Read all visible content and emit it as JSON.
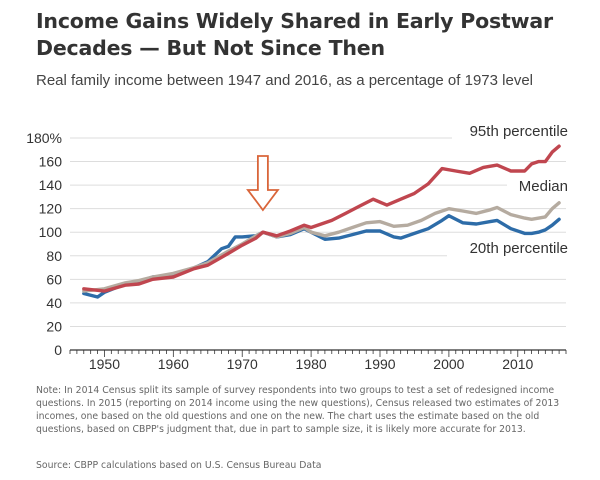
{
  "title": "Income Gains Widely Shared in Early Postwar Decades — But Not Since Then",
  "subtitle": "Real family income between 1947 and 2016, as a percentage of 1973 level",
  "note": "Note: In 2014 Census split its sample of survey respondents into two groups to test a set of redesigned income questions.  In 2015 (reporting on 2014 income using the new questions), Census released two estimates of 2013 incomes, one based on the old questions and one on the new.  The chart uses the estimate based on the old questions, based on CBPP's judgment that, due in part to sample size, it is likely more accurate for 2013.",
  "source": "Source: CBPP calculations based on U.S. Census Bureau Data",
  "colors": {
    "p95": "#c0464f",
    "median": "#b5aba0",
    "p20": "#2d6ca8",
    "arrow": "#d9653a",
    "axis": "#333333",
    "grid": "#dddddd"
  },
  "chart_data": {
    "type": "line",
    "xlim": [
      1945,
      2017
    ],
    "ylim": [
      0,
      180
    ],
    "yticks": [
      0,
      20,
      40,
      60,
      80,
      100,
      120,
      140,
      160,
      180
    ],
    "ytick_labels": [
      "0",
      "20",
      "40",
      "60",
      "80",
      "100",
      "120",
      "140",
      "160",
      "180%"
    ],
    "xticks": [
      1950,
      1960,
      1970,
      1980,
      1990,
      2000,
      2010
    ],
    "xtick_labels": [
      "1950",
      "1960",
      "1970",
      "1980",
      "1990",
      "2000",
      "2010"
    ],
    "annotation": {
      "type": "down-arrow",
      "x": 1973
    },
    "series": [
      {
        "name": "95th percentile",
        "key": "p95",
        "points": [
          [
            1947,
            52
          ],
          [
            1950,
            50
          ],
          [
            1953,
            55
          ],
          [
            1955,
            56
          ],
          [
            1957,
            60
          ],
          [
            1960,
            62
          ],
          [
            1963,
            69
          ],
          [
            1965,
            72
          ],
          [
            1968,
            82
          ],
          [
            1970,
            89
          ],
          [
            1972,
            95
          ],
          [
            1973,
            100
          ],
          [
            1975,
            97
          ],
          [
            1977,
            101
          ],
          [
            1979,
            106
          ],
          [
            1980,
            104
          ],
          [
            1983,
            110
          ],
          [
            1985,
            116
          ],
          [
            1987,
            122
          ],
          [
            1989,
            128
          ],
          [
            1991,
            123
          ],
          [
            1993,
            128
          ],
          [
            1995,
            133
          ],
          [
            1997,
            141
          ],
          [
            1999,
            154
          ],
          [
            2001,
            152
          ],
          [
            2003,
            150
          ],
          [
            2005,
            155
          ],
          [
            2007,
            157
          ],
          [
            2009,
            152
          ],
          [
            2011,
            152
          ],
          [
            2012,
            158
          ],
          [
            2013,
            160
          ],
          [
            2014,
            160
          ],
          [
            2015,
            168
          ],
          [
            2016,
            173
          ]
        ]
      },
      {
        "name": "Median",
        "key": "median",
        "points": [
          [
            1947,
            50
          ],
          [
            1950,
            52
          ],
          [
            1953,
            57
          ],
          [
            1955,
            59
          ],
          [
            1957,
            62
          ],
          [
            1960,
            65
          ],
          [
            1963,
            70
          ],
          [
            1965,
            74
          ],
          [
            1968,
            84
          ],
          [
            1970,
            90
          ],
          [
            1972,
            97
          ],
          [
            1973,
            100
          ],
          [
            1975,
            96
          ],
          [
            1977,
            99
          ],
          [
            1979,
            104
          ],
          [
            1980,
            100
          ],
          [
            1982,
            97
          ],
          [
            1984,
            100
          ],
          [
            1986,
            104
          ],
          [
            1988,
            108
          ],
          [
            1990,
            109
          ],
          [
            1992,
            105
          ],
          [
            1994,
            106
          ],
          [
            1996,
            110
          ],
          [
            1998,
            116
          ],
          [
            2000,
            120
          ],
          [
            2002,
            118
          ],
          [
            2004,
            116
          ],
          [
            2006,
            119
          ],
          [
            2007,
            121
          ],
          [
            2009,
            115
          ],
          [
            2011,
            112
          ],
          [
            2012,
            111
          ],
          [
            2014,
            113
          ],
          [
            2015,
            120
          ],
          [
            2016,
            125
          ]
        ]
      },
      {
        "name": "20th percentile",
        "key": "p20",
        "points": [
          [
            1947,
            48
          ],
          [
            1949,
            45
          ],
          [
            1950,
            49
          ],
          [
            1953,
            56
          ],
          [
            1955,
            58
          ],
          [
            1957,
            62
          ],
          [
            1960,
            63
          ],
          [
            1962,
            67
          ],
          [
            1965,
            75
          ],
          [
            1967,
            86
          ],
          [
            1968,
            88
          ],
          [
            1969,
            96
          ],
          [
            1970,
            96
          ],
          [
            1972,
            97
          ],
          [
            1973,
            100
          ],
          [
            1975,
            96
          ],
          [
            1977,
            98
          ],
          [
            1979,
            103
          ],
          [
            1980,
            100
          ],
          [
            1982,
            94
          ],
          [
            1984,
            95
          ],
          [
            1986,
            98
          ],
          [
            1988,
            101
          ],
          [
            1990,
            101
          ],
          [
            1992,
            96
          ],
          [
            1993,
            95
          ],
          [
            1995,
            99
          ],
          [
            1997,
            103
          ],
          [
            1999,
            110
          ],
          [
            2000,
            114
          ],
          [
            2002,
            108
          ],
          [
            2004,
            107
          ],
          [
            2006,
            109
          ],
          [
            2007,
            110
          ],
          [
            2009,
            103
          ],
          [
            2011,
            99
          ],
          [
            2012,
            99
          ],
          [
            2013,
            100
          ],
          [
            2014,
            102
          ],
          [
            2015,
            106
          ],
          [
            2016,
            111
          ]
        ]
      }
    ]
  }
}
